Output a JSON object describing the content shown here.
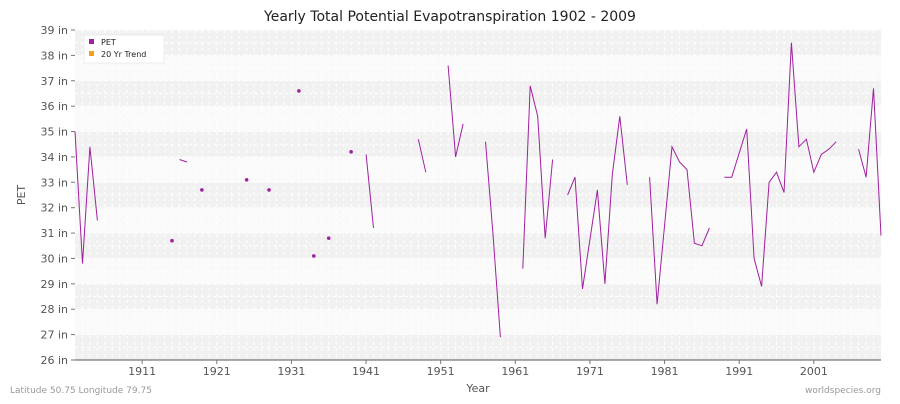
{
  "chart_data": {
    "type": "line",
    "title": "Yearly Total Potential Evapotranspiration 1902 - 2009",
    "xlabel": "Year",
    "ylabel": "PET",
    "xlim": [
      1902,
      2010
    ],
    "ylim": [
      26,
      39
    ],
    "x_ticks": [
      1911,
      1921,
      1931,
      1941,
      1951,
      1961,
      1971,
      1981,
      1991,
      2001
    ],
    "y_ticks": [
      {
        "value": 26,
        "label": "26 in"
      },
      {
        "value": 27,
        "label": "27 in"
      },
      {
        "value": 28,
        "label": "28 in"
      },
      {
        "value": 29,
        "label": "29 in"
      },
      {
        "value": 30,
        "label": "30 in"
      },
      {
        "value": 31,
        "label": "31 in"
      },
      {
        "value": 32,
        "label": "32 in"
      },
      {
        "value": 33,
        "label": "33 in"
      },
      {
        "value": 34,
        "label": "34 in"
      },
      {
        "value": 35,
        "label": "35 in"
      },
      {
        "value": 36,
        "label": "36 in"
      },
      {
        "value": 37,
        "label": "37 in"
      },
      {
        "value": 38,
        "label": "38 in"
      },
      {
        "value": 39,
        "label": "39 in"
      }
    ],
    "legend": {
      "position": "top-left",
      "items": [
        {
          "name": "PET",
          "color": "#a020a0"
        },
        {
          "name": "20 Yr Trend",
          "color": "#f0a020"
        }
      ]
    },
    "series": [
      {
        "name": "PET",
        "color": "#a020a0",
        "segments": [
          [
            [
              1902,
              35.0
            ],
            [
              1903,
              29.8
            ],
            [
              1904,
              34.4
            ],
            [
              1905,
              31.5
            ]
          ],
          [
            [
              1915,
              30.7
            ]
          ],
          [
            [
              1916,
              33.9
            ],
            [
              1917,
              33.8
            ]
          ],
          [
            [
              1919,
              32.7
            ]
          ],
          [
            [
              1925,
              33.1
            ]
          ],
          [
            [
              1928,
              32.7
            ]
          ],
          [
            [
              1932,
              36.6
            ]
          ],
          [
            [
              1934,
              30.1
            ]
          ],
          [
            [
              1936,
              30.8
            ]
          ],
          [
            [
              1939,
              34.2
            ]
          ],
          [
            [
              1941,
              34.1
            ],
            [
              1942,
              31.2
            ]
          ],
          [
            [
              1948,
              34.7
            ],
            [
              1949,
              33.4
            ]
          ],
          [
            [
              1952,
              37.6
            ],
            [
              1953,
              34.0
            ],
            [
              1954,
              35.3
            ]
          ],
          [
            [
              1957,
              34.6
            ],
            [
              1958,
              31.0
            ],
            [
              1959,
              26.9
            ]
          ],
          [
            [
              1962,
              29.6
            ],
            [
              1963,
              36.8
            ],
            [
              1964,
              35.6
            ],
            [
              1965,
              30.8
            ],
            [
              1966,
              33.9
            ]
          ],
          [
            [
              1968,
              32.5
            ],
            [
              1969,
              33.2
            ],
            [
              1970,
              28.8
            ],
            [
              1972,
              32.7
            ],
            [
              1973,
              29.0
            ],
            [
              1974,
              33.3
            ],
            [
              1975,
              35.6
            ],
            [
              1976,
              32.9
            ]
          ],
          [
            [
              1979,
              33.2
            ],
            [
              1980,
              28.2
            ],
            [
              1982,
              34.4
            ],
            [
              1983,
              33.8
            ],
            [
              1984,
              33.5
            ],
            [
              1985,
              30.6
            ],
            [
              1986,
              30.5
            ],
            [
              1987,
              31.2
            ]
          ],
          [
            [
              1989,
              33.2
            ],
            [
              1990,
              33.2
            ],
            [
              1992,
              35.1
            ],
            [
              1993,
              30.0
            ],
            [
              1994,
              28.9
            ],
            [
              1995,
              33.0
            ],
            [
              1996,
              33.4
            ],
            [
              1997,
              32.6
            ],
            [
              1998,
              38.5
            ],
            [
              1999,
              34.4
            ],
            [
              2000,
              34.7
            ],
            [
              2001,
              33.4
            ],
            [
              2002,
              34.1
            ],
            [
              2003,
              34.3
            ],
            [
              2004,
              34.6
            ]
          ],
          [
            [
              2007,
              34.3
            ],
            [
              2008,
              33.2
            ],
            [
              2009,
              36.7
            ],
            [
              2010,
              30.9
            ]
          ]
        ]
      }
    ]
  },
  "footer": {
    "left": "Latitude 50.75 Longitude 79.75",
    "right": "worldspecies.org"
  }
}
